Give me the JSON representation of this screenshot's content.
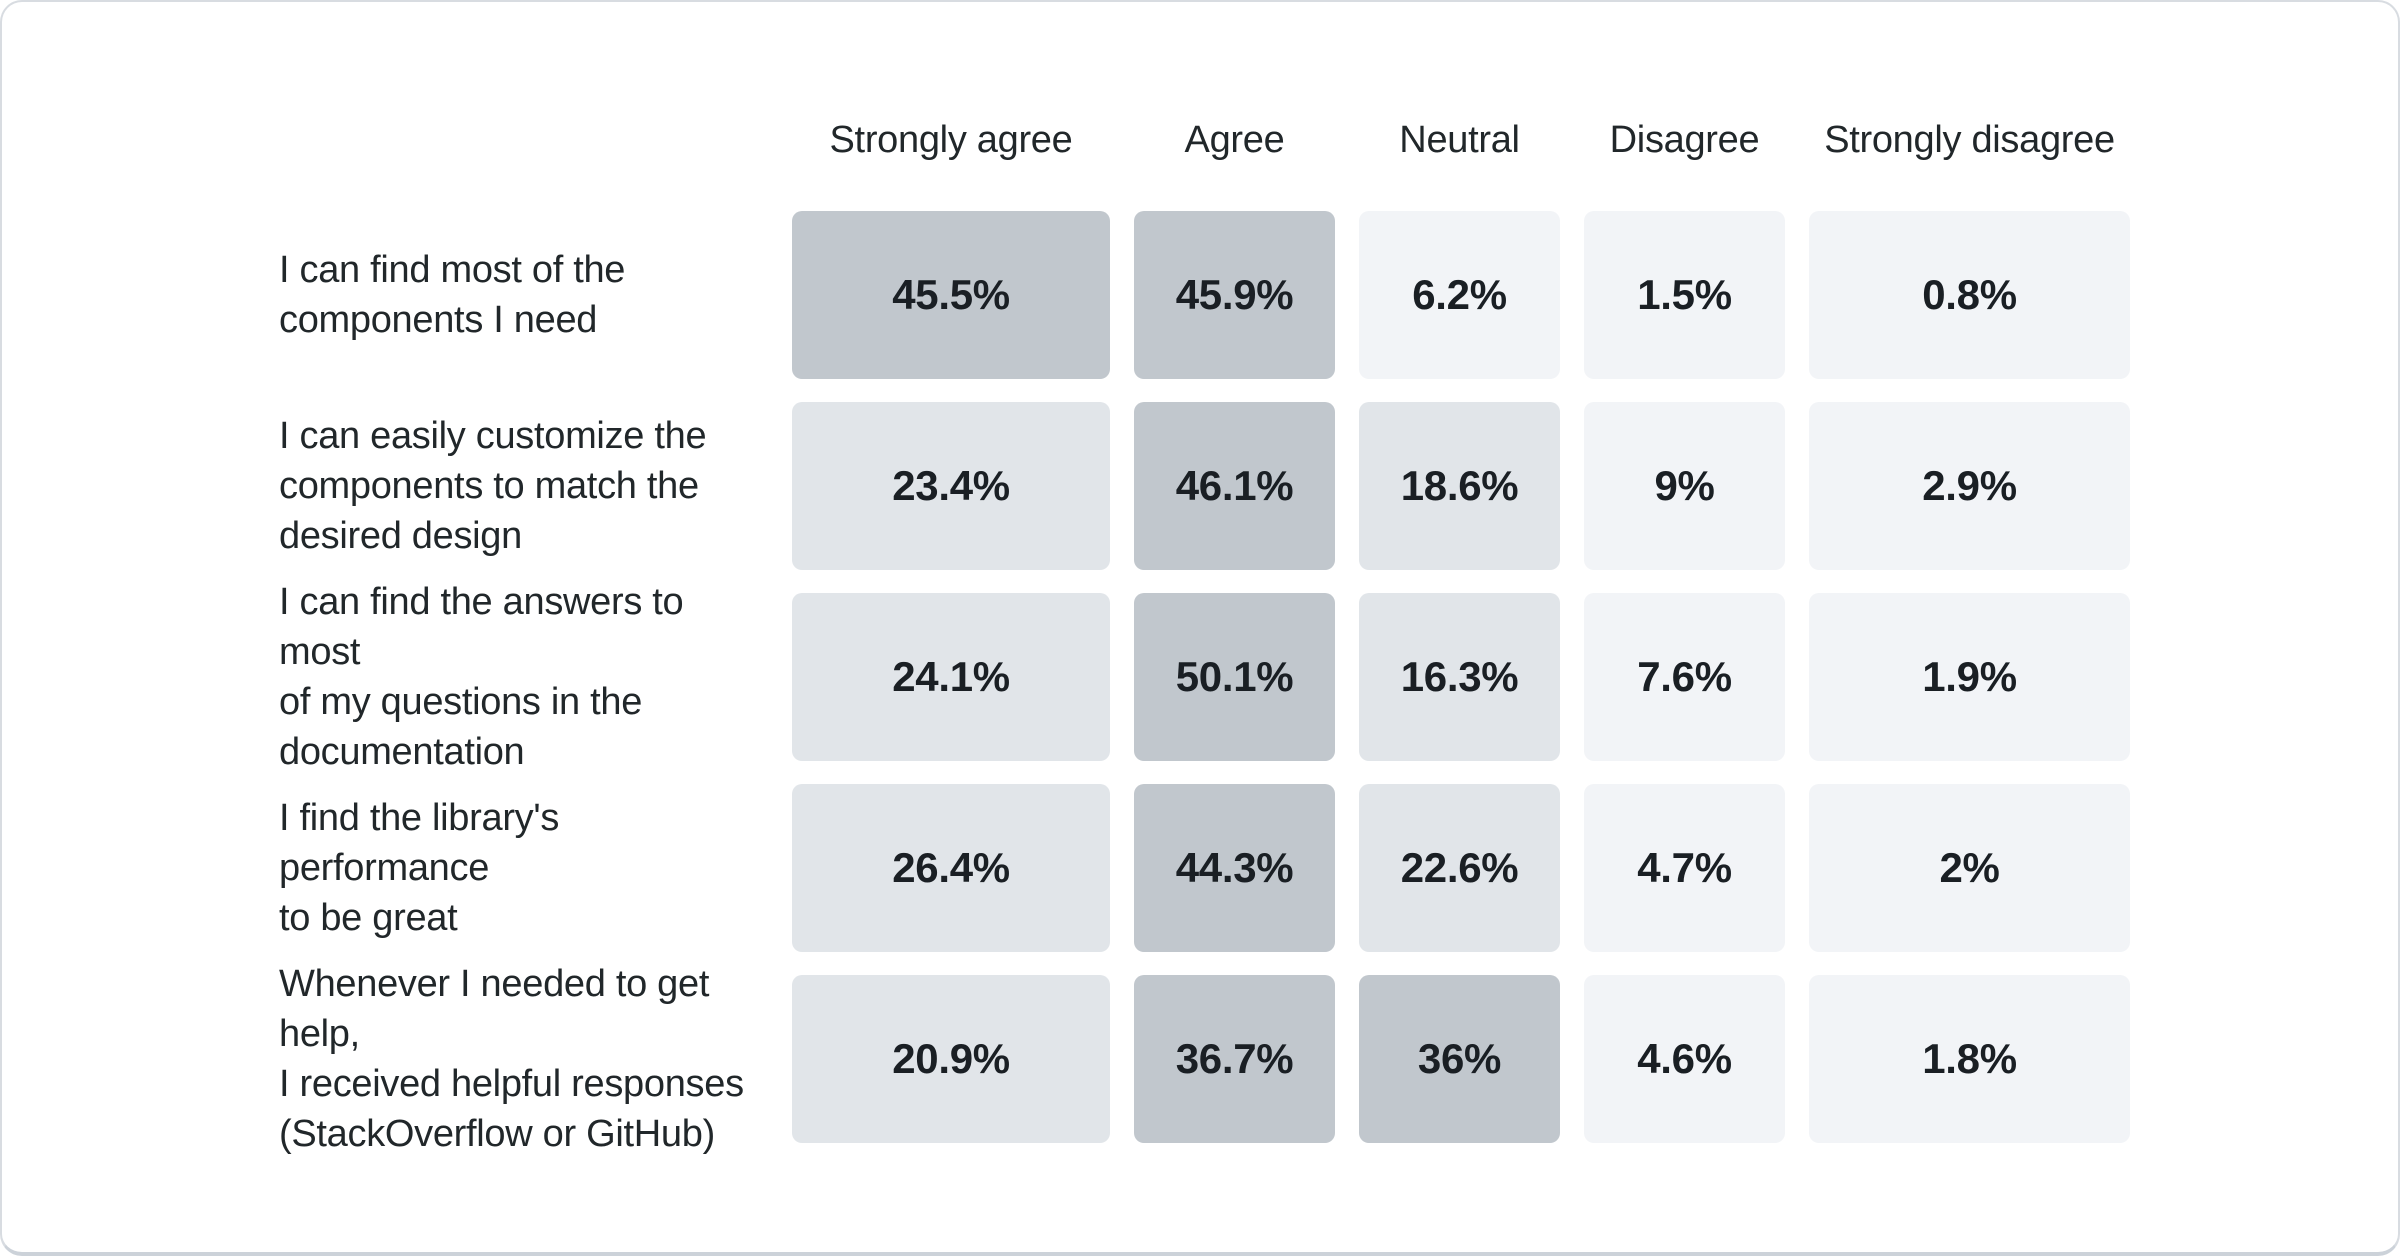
{
  "card": {
    "background": "#ffffff",
    "border_color": "#d8dce1"
  },
  "heatmap": {
    "text_color": "#21272a",
    "value_color": "#1a1f24",
    "color_scale": [
      {
        "min": 30,
        "color": "#c1c7cd"
      },
      {
        "min": 10,
        "color": "#e1e5e9"
      },
      {
        "min": 0,
        "color": "#f2f4f7"
      }
    ]
  },
  "chart_data": {
    "type": "heatmap",
    "title": "",
    "legend_position": "none",
    "grid": false,
    "columns": [
      "Strongly agree",
      "Agree",
      "Neutral",
      "Disagree",
      "Strongly disagree"
    ],
    "rows": [
      {
        "label": "I can find most of the\ncomponents I need",
        "cells": [
          {
            "v": 45.5,
            "label": "45.5%"
          },
          {
            "v": 45.9,
            "label": "45.9%"
          },
          {
            "v": 6.2,
            "label": "6.2%"
          },
          {
            "v": 1.5,
            "label": "1.5%"
          },
          {
            "v": 0.8,
            "label": "0.8%"
          }
        ]
      },
      {
        "label": "I can easily customize the\ncomponents to match the\ndesired design",
        "cells": [
          {
            "v": 23.4,
            "label": "23.4%"
          },
          {
            "v": 46.1,
            "label": "46.1%"
          },
          {
            "v": 18.6,
            "label": "18.6%"
          },
          {
            "v": 9,
            "label": "9%"
          },
          {
            "v": 2.9,
            "label": "2.9%"
          }
        ]
      },
      {
        "label": "I can find the answers to most\nof my questions in the\ndocumentation",
        "cells": [
          {
            "v": 24.1,
            "label": "24.1%"
          },
          {
            "v": 50.1,
            "label": "50.1%"
          },
          {
            "v": 16.3,
            "label": "16.3%"
          },
          {
            "v": 7.6,
            "label": "7.6%"
          },
          {
            "v": 1.9,
            "label": "1.9%"
          }
        ]
      },
      {
        "label": "I find the library's performance\nto be great",
        "cells": [
          {
            "v": 26.4,
            "label": "26.4%"
          },
          {
            "v": 44.3,
            "label": "44.3%"
          },
          {
            "v": 22.6,
            "label": "22.6%"
          },
          {
            "v": 4.7,
            "label": "4.7%"
          },
          {
            "v": 2,
            "label": "2%"
          }
        ]
      },
      {
        "label": "Whenever I needed to get help,\nI received helpful responses\n(StackOverflow or GitHub)",
        "cells": [
          {
            "v": 20.9,
            "label": "20.9%"
          },
          {
            "v": 36.7,
            "label": "36.7%"
          },
          {
            "v": 36,
            "label": "36%"
          },
          {
            "v": 4.6,
            "label": "4.6%"
          },
          {
            "v": 1.8,
            "label": "1.8%"
          }
        ]
      }
    ]
  }
}
